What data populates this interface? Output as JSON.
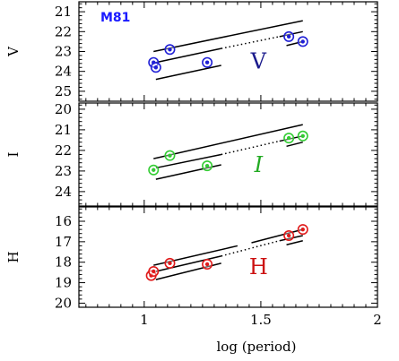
{
  "chart_data": {
    "type": "scatter",
    "xlabel": "log (period)",
    "xlim": [
      0.72,
      2.0
    ],
    "xticks": [
      {
        "v": 1,
        "label": "1"
      },
      {
        "v": 1.5,
        "label": "1.5"
      },
      {
        "v": 2,
        "label": "2"
      }
    ],
    "line_color": "#000000",
    "panels": [
      {
        "id": "V",
        "ylabel": "V",
        "band_label": "V",
        "band_label_italic": false,
        "annotation": "M81",
        "annotation_color": "#1a1aff",
        "color": "#1f1fd6",
        "label_color": "#1a1a8c",
        "ylim": [
          25.5,
          20.5
        ],
        "yticks": [
          "21",
          "22",
          "23",
          "24",
          "25"
        ],
        "points": [
          {
            "x": 1.04,
            "y": 23.55
          },
          {
            "x": 1.05,
            "y": 23.8
          },
          {
            "x": 1.11,
            "y": 22.9
          },
          {
            "x": 1.27,
            "y": 23.55
          },
          {
            "x": 1.62,
            "y": 22.25
          },
          {
            "x": 1.68,
            "y": 22.5
          }
        ],
        "lines": [
          {
            "style": "solid",
            "from": [
              1.04,
              23.0
            ],
            "to": [
              1.68,
              21.45
            ]
          },
          {
            "style": "solid",
            "from": [
              1.05,
              24.4
            ],
            "to": [
              1.33,
              23.7
            ]
          },
          {
            "style": "solid",
            "from": [
              1.61,
              22.7
            ],
            "to": [
              1.68,
              22.5
            ]
          },
          {
            "style": "solid",
            "from": [
              1.05,
              23.55
            ],
            "to": [
              1.33,
              22.85
            ]
          },
          {
            "style": "dotted",
            "from": [
              1.33,
              22.85
            ],
            "to": [
              1.58,
              22.25
            ]
          },
          {
            "style": "solid",
            "from": [
              1.58,
              22.25
            ],
            "to": [
              1.68,
              22.0
            ]
          }
        ]
      },
      {
        "id": "I",
        "ylabel": "I",
        "band_label": "I",
        "band_label_italic": true,
        "annotation": "",
        "annotation_color": "",
        "color": "#33cc33",
        "label_color": "#22aa22",
        "ylim": [
          24.7,
          19.7
        ],
        "yticks": [
          "20",
          "21",
          "22",
          "23",
          "24"
        ],
        "points": [
          {
            "x": 1.04,
            "y": 22.95
          },
          {
            "x": 1.11,
            "y": 22.25
          },
          {
            "x": 1.27,
            "y": 22.75
          },
          {
            "x": 1.62,
            "y": 21.4
          },
          {
            "x": 1.68,
            "y": 21.3
          }
        ],
        "lines": [
          {
            "style": "solid",
            "from": [
              1.04,
              22.4
            ],
            "to": [
              1.68,
              20.75
            ]
          },
          {
            "style": "solid",
            "from": [
              1.05,
              23.4
            ],
            "to": [
              1.33,
              22.7
            ]
          },
          {
            "style": "solid",
            "from": [
              1.61,
              21.8
            ],
            "to": [
              1.68,
              21.6
            ]
          },
          {
            "style": "solid",
            "from": [
              1.05,
              22.85
            ],
            "to": [
              1.33,
              22.2
            ]
          },
          {
            "style": "dotted",
            "from": [
              1.33,
              22.2
            ],
            "to": [
              1.58,
              21.55
            ]
          },
          {
            "style": "solid",
            "from": [
              1.58,
              21.55
            ],
            "to": [
              1.68,
              21.3
            ]
          }
        ]
      },
      {
        "id": "H",
        "ylabel": "H",
        "band_label": "H",
        "band_label_italic": false,
        "annotation": "",
        "annotation_color": "",
        "color": "#e01a1a",
        "label_color": "#cc1111",
        "ylim": [
          20.2,
          15.3
        ],
        "yticks": [
          "16",
          "17",
          "18",
          "19",
          "20"
        ],
        "points": [
          {
            "x": 1.03,
            "y": 18.65
          },
          {
            "x": 1.04,
            "y": 18.45
          },
          {
            "x": 1.11,
            "y": 18.05
          },
          {
            "x": 1.27,
            "y": 18.1
          },
          {
            "x": 1.62,
            "y": 16.7
          },
          {
            "x": 1.68,
            "y": 16.4
          }
        ],
        "lines": [
          {
            "style": "solid",
            "from": [
              1.04,
              18.15
            ],
            "to": [
              1.4,
              17.2
            ]
          },
          {
            "style": "solid",
            "from": [
              1.46,
              17.05
            ],
            "to": [
              1.68,
              16.4
            ]
          },
          {
            "style": "solid",
            "from": [
              1.05,
              18.85
            ],
            "to": [
              1.33,
              18.05
            ]
          },
          {
            "style": "solid",
            "from": [
              1.61,
              17.15
            ],
            "to": [
              1.68,
              16.95
            ]
          },
          {
            "style": "solid",
            "from": [
              1.05,
              18.45
            ],
            "to": [
              1.33,
              17.7
            ]
          },
          {
            "style": "dotted",
            "from": [
              1.33,
              17.7
            ],
            "to": [
              1.58,
              16.95
            ]
          },
          {
            "style": "solid",
            "from": [
              1.58,
              16.95
            ],
            "to": [
              1.68,
              16.7
            ]
          }
        ]
      }
    ]
  }
}
